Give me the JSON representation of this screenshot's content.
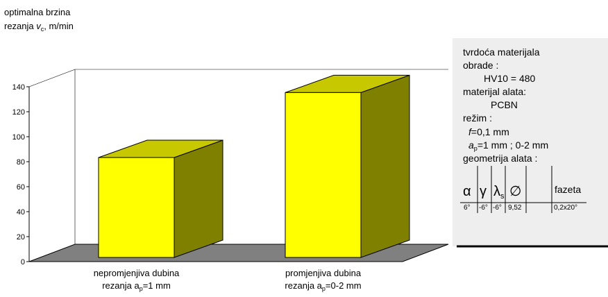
{
  "chart_data": {
    "type": "bar",
    "y_label": [
      [
        "optimalna brzina"
      ],
      [
        "rezanja ",
        "v",
        "c",
        ", m/min"
      ]
    ],
    "categories": [
      [
        "nepromjenjiva dubina",
        "rezanja a",
        "p",
        "=1 mm"
      ],
      [
        "promjenjiva dubina",
        "rezanja a",
        "p",
        "=0-2 mm"
      ]
    ],
    "values": [
      80,
      132
    ],
    "color": "#ffff00",
    "ylim": [
      0,
      140
    ],
    "yticks": [
      0,
      20,
      40,
      60,
      80,
      100,
      120,
      140
    ]
  },
  "info": {
    "lines": [
      "tvrdoća materijala",
      "obrade :",
      "HV10 = 480",
      "materijal alata:",
      "PCBN",
      "režim :"
    ],
    "feed": [
      "f",
      "=0,1 mm"
    ],
    "depth": [
      "a",
      "p",
      "=1 mm ; 0-2 mm"
    ],
    "geometry": "geometrija alata :",
    "table": {
      "header": [
        [
          "α"
        ],
        [
          "γ"
        ],
        [
          "λ",
          "s"
        ],
        [
          "∅"
        ],
        [
          "fazeta"
        ]
      ],
      "row": [
        "6°",
        "-6°",
        "-6°",
        "9,52",
        "0,2x20°"
      ]
    }
  }
}
